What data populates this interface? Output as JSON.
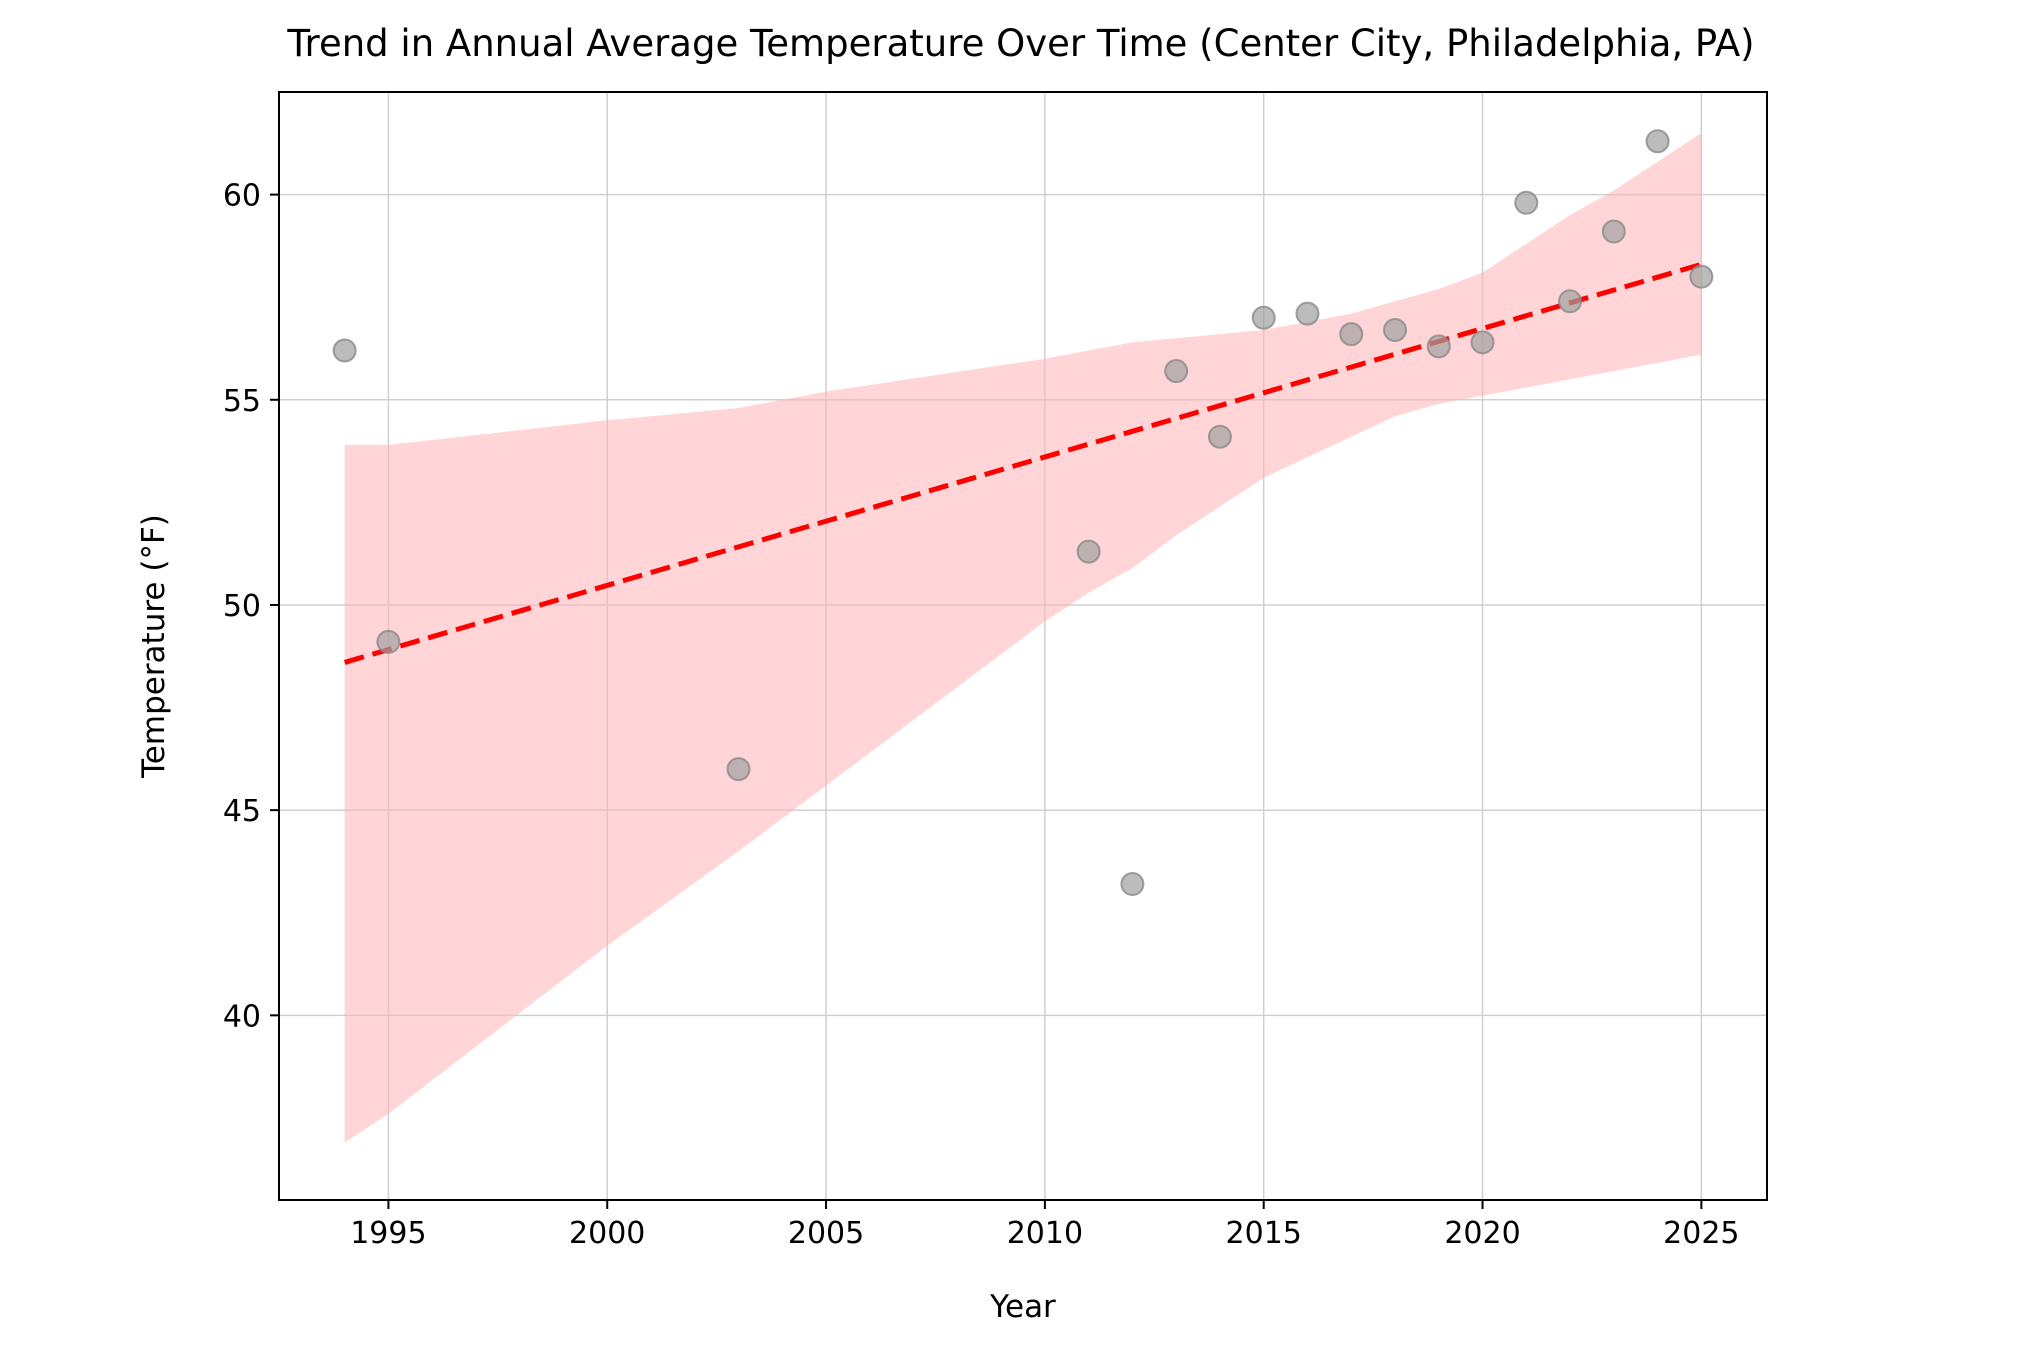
{
  "chart_data": {
    "type": "scatter",
    "title": "Trend in Annual Average Temperature Over Time (Center City, Philadelphia, PA)",
    "xlabel": "Year",
    "ylabel": "Temperature (°F)",
    "xlim": [
      1992.5,
      2026.5
    ],
    "ylim": [
      35.5,
      62.5
    ],
    "xticks": [
      1995,
      2000,
      2005,
      2010,
      2015,
      2020,
      2025
    ],
    "yticks": [
      40,
      45,
      50,
      55,
      60
    ],
    "grid": true,
    "colors": {
      "points": "#a0a0a0",
      "trend": "#ff0000",
      "band": "#ffb3b6",
      "grid": "#d0d0d0"
    },
    "points": {
      "x": [
        1994,
        1995,
        2003,
        2011,
        2012,
        2013,
        2014,
        2015,
        2016,
        2017,
        2018,
        2019,
        2020,
        2021,
        2022,
        2023,
        2024,
        2025
      ],
      "y": [
        56.2,
        49.1,
        46.0,
        51.3,
        43.2,
        55.7,
        54.1,
        57.0,
        57.1,
        56.6,
        56.7,
        56.3,
        56.4,
        59.8,
        57.4,
        59.1,
        61.3,
        58.0
      ]
    },
    "trend_line": {
      "x": [
        1994,
        2025
      ],
      "y": [
        48.6,
        58.3
      ]
    },
    "confidence_band": {
      "x": [
        1994,
        1995,
        2000,
        2003,
        2005,
        2010,
        2011,
        2012,
        2013,
        2014,
        2015,
        2016,
        2017,
        2018,
        2019,
        2020,
        2021,
        2022,
        2023,
        2024,
        2025
      ],
      "lower": [
        36.9,
        37.6,
        41.7,
        44.0,
        45.6,
        49.6,
        50.3,
        50.9,
        51.7,
        52.4,
        53.1,
        53.6,
        54.1,
        54.6,
        54.9,
        55.1,
        55.3,
        55.5,
        55.7,
        55.9,
        56.1
      ],
      "upper": [
        53.9,
        53.9,
        54.5,
        54.8,
        55.2,
        56.0,
        56.2,
        56.4,
        56.5,
        56.6,
        56.7,
        56.9,
        57.1,
        57.4,
        57.7,
        58.1,
        58.8,
        59.5,
        60.1,
        60.8,
        61.5
      ]
    }
  }
}
